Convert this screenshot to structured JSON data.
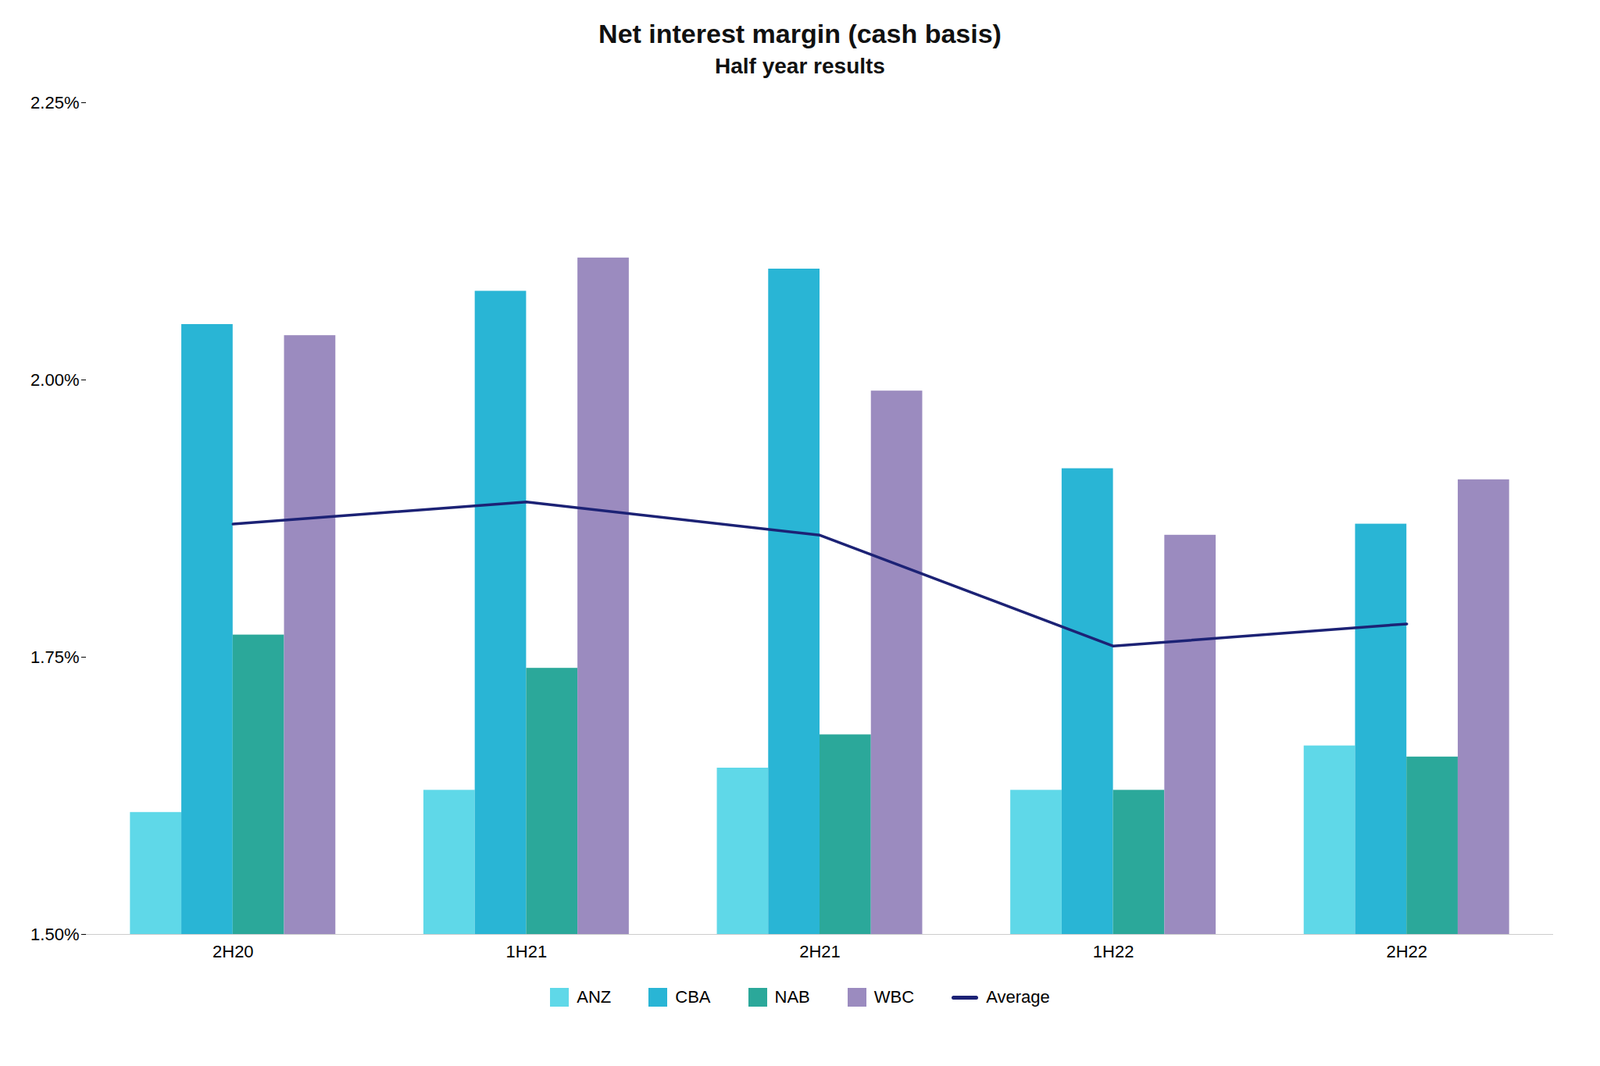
{
  "chart_data": {
    "type": "bar",
    "title": "Net interest margin (cash basis)",
    "subtitle": "Half year results",
    "categories": [
      "2H20",
      "1H21",
      "2H21",
      "1H22",
      "2H22"
    ],
    "series": [
      {
        "name": "ANZ",
        "color": "#5FD8E8",
        "values": [
          1.61,
          1.63,
          1.65,
          1.63,
          1.67
        ]
      },
      {
        "name": "CBA",
        "color": "#29B5D5",
        "values": [
          2.05,
          2.08,
          2.1,
          1.92,
          1.87
        ]
      },
      {
        "name": "NAB",
        "color": "#2BA89A",
        "values": [
          1.77,
          1.74,
          1.68,
          1.63,
          1.66
        ]
      },
      {
        "name": "WBC",
        "color": "#9B8BBF",
        "values": [
          2.04,
          2.11,
          1.99,
          1.86,
          1.91
        ]
      },
      {
        "name": "Average",
        "type": "line",
        "color": "#1C2275",
        "values": [
          1.87,
          1.89,
          1.86,
          1.76,
          1.78
        ]
      }
    ],
    "ylim": [
      1.5,
      2.25
    ],
    "yticks": [
      {
        "value": 1.5,
        "label": "1.50%"
      },
      {
        "value": 1.75,
        "label": "1.75%"
      },
      {
        "value": 2.0,
        "label": "2.00%"
      },
      {
        "value": 2.25,
        "label": "2.25%"
      }
    ],
    "grid": false,
    "legend": "bottom"
  }
}
